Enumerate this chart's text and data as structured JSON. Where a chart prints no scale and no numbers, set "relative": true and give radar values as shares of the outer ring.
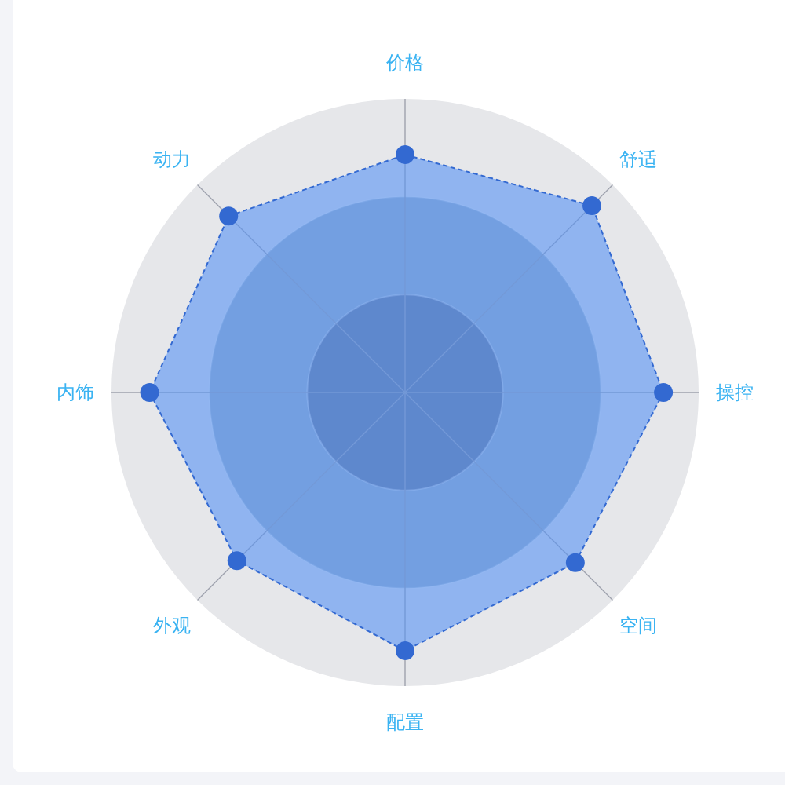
{
  "chart_data": {
    "type": "radar",
    "relative": true,
    "categories": [
      "价格",
      "舒适",
      "操控",
      "空间",
      "配置",
      "外观",
      "内饰",
      "动力"
    ],
    "series": [
      {
        "color": "#3369d1",
        "values": [
          0.81,
          0.9,
          0.88,
          0.82,
          0.88,
          0.81,
          0.87,
          0.85
        ]
      }
    ],
    "grid": true,
    "marker": "circle",
    "line_style": "dashed"
  }
}
